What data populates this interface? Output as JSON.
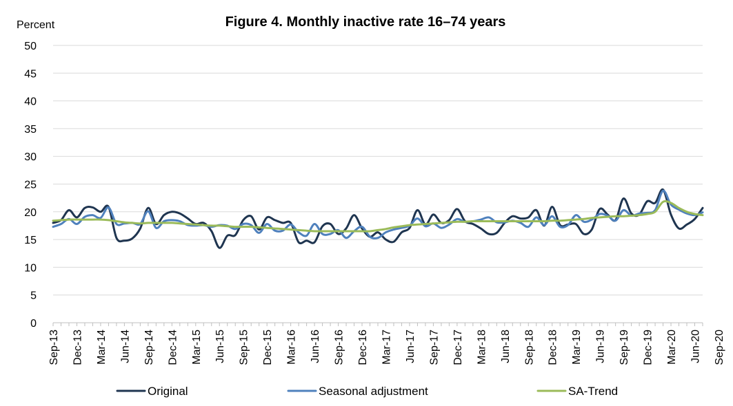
{
  "chart_data": {
    "type": "line",
    "title": "Figure 4.  Monthly inactive rate 16–74 years",
    "ylabel": "Percent",
    "xlabel": "",
    "ylim": [
      0,
      50
    ],
    "yticks": [
      0,
      5,
      10,
      15,
      20,
      25,
      30,
      35,
      40,
      45,
      50
    ],
    "grid": true,
    "legend_position": "bottom",
    "x_tick_labels": [
      "Sep-13",
      "Dec-13",
      "Mar-14",
      "Jun-14",
      "Sep-14",
      "Dec-14",
      "Mar-15",
      "Jun-15",
      "Sep-15",
      "Dec-15",
      "Mar-16",
      "Jun-16",
      "Sep-16",
      "Dec-16",
      "Mar-17",
      "Jun-17",
      "Sep-17",
      "Dec-17",
      "Mar-18",
      "Jun-18",
      "Sep-18",
      "Dec-18",
      "Mar-19",
      "Jun-19",
      "Sep-19",
      "Dec-19",
      "Mar-20",
      "Jun-20",
      "Sep-20"
    ],
    "x_start": "Sep-13",
    "series": [
      {
        "name": "Original",
        "color": "#1f3550",
        "values": [
          18.0,
          18.5,
          20.3,
          19.0,
          20.7,
          20.8,
          20.0,
          20.9,
          15.3,
          14.8,
          15.2,
          17.0,
          20.7,
          17.8,
          19.4,
          20.0,
          19.7,
          18.8,
          17.8,
          18.0,
          16.5,
          13.5,
          15.7,
          15.8,
          18.5,
          19.2,
          16.8,
          19.0,
          18.5,
          18.0,
          18.0,
          14.5,
          14.8,
          14.5,
          17.4,
          17.8,
          16.0,
          17.0,
          19.4,
          17.0,
          15.5,
          16.3,
          15.0,
          14.6,
          16.3,
          17.1,
          20.3,
          17.7,
          19.5,
          18.0,
          18.5,
          20.5,
          18.3,
          17.8,
          17.0,
          16.0,
          16.2,
          18.0,
          19.2,
          18.8,
          19.0,
          20.3,
          17.5,
          20.9,
          17.6,
          17.7,
          17.8,
          16.0,
          16.8,
          20.5,
          19.5,
          18.5,
          22.4,
          19.7,
          19.5,
          21.9,
          21.6,
          24.0,
          19.5,
          17.0,
          17.7,
          18.7,
          20.7
        ]
      },
      {
        "name": "Seasonal adjustment",
        "color": "#4f81bd",
        "values": [
          17.3,
          17.8,
          18.7,
          17.8,
          19.1,
          19.4,
          18.9,
          20.8,
          17.8,
          17.9,
          18.0,
          17.8,
          20.1,
          17.1,
          18.3,
          18.5,
          18.3,
          17.6,
          17.5,
          17.6,
          17.3,
          17.6,
          17.5,
          16.9,
          17.8,
          17.6,
          16.2,
          17.8,
          16.6,
          16.6,
          17.7,
          16.3,
          15.7,
          17.8,
          16.0,
          16.0,
          16.7,
          15.3,
          16.5,
          17.3,
          15.5,
          15.3,
          16.3,
          16.8,
          17.1,
          17.5,
          18.8,
          17.4,
          17.9,
          17.1,
          17.7,
          18.7,
          18.2,
          18.3,
          18.6,
          19.0,
          18.1,
          18.1,
          18.4,
          18.0,
          17.3,
          19.0,
          17.6,
          19.2,
          17.3,
          17.6,
          19.4,
          18.2,
          18.6,
          19.6,
          19.3,
          18.4,
          20.3,
          19.3,
          19.7,
          19.8,
          20.3,
          23.8,
          21.3,
          20.4,
          19.7,
          19.4,
          19.9
        ]
      },
      {
        "name": "SA-Trend",
        "color": "#9bbb59",
        "values": [
          18.4,
          18.5,
          18.6,
          18.6,
          18.6,
          18.6,
          18.6,
          18.5,
          18.3,
          18.1,
          18.0,
          17.9,
          18.0,
          18.0,
          18.0,
          18.0,
          17.9,
          17.8,
          17.7,
          17.6,
          17.5,
          17.5,
          17.4,
          17.3,
          17.3,
          17.3,
          17.2,
          17.1,
          17.0,
          16.9,
          16.8,
          16.7,
          16.6,
          16.5,
          16.5,
          16.5,
          16.5,
          16.5,
          16.5,
          16.5,
          16.5,
          16.7,
          16.9,
          17.2,
          17.4,
          17.6,
          17.7,
          17.8,
          17.9,
          18.0,
          18.1,
          18.2,
          18.2,
          18.3,
          18.3,
          18.3,
          18.3,
          18.3,
          18.3,
          18.3,
          18.3,
          18.3,
          18.3,
          18.4,
          18.4,
          18.5,
          18.6,
          18.7,
          18.9,
          19.0,
          19.1,
          19.2,
          19.2,
          19.3,
          19.4,
          19.6,
          20.0,
          21.8,
          21.6,
          20.7,
          20.0,
          19.6,
          19.4
        ]
      }
    ]
  }
}
